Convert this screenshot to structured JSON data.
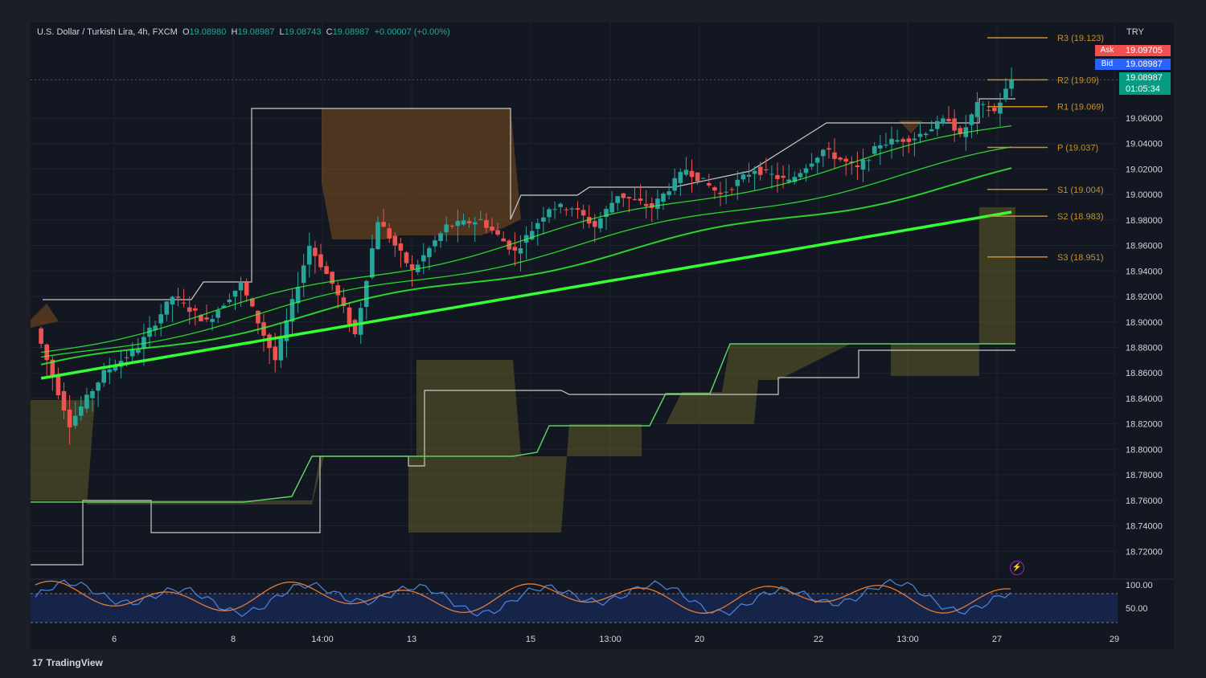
{
  "header": {
    "symbol": "U.S. Dollar / Turkish Lira, 4h, FXCM",
    "o_label": "O",
    "o_value": "19.08980",
    "h_label": "H",
    "h_value": "19.08987",
    "l_label": "L",
    "l_value": "19.08743",
    "c_label": "C",
    "c_value": "19.08987",
    "change": "+0.00007 (+0.00%)"
  },
  "currency": "TRY",
  "quote": {
    "ask_label": "Ask",
    "ask_value": "19.09705",
    "bid_label": "Bid",
    "bid_value": "19.08987",
    "last_value": "19.08987",
    "countdown": "01:05:34"
  },
  "pivot_labels": [
    "R3 (19.123)",
    "R2 (19.09)",
    "R1 (19.069)",
    "P (19.037)",
    "S1 (19.004)",
    "S2 (18.983)",
    "S3 (18.951)"
  ],
  "brand": {
    "logo": "17",
    "name": "TradingView"
  },
  "colors": {
    "bg": "#131722",
    "up": "#26a69a",
    "down": "#ef5350",
    "ma": "#33ff33",
    "pivot": "#c8902a",
    "ask": "#f05050",
    "bid": "#2962ff",
    "last": "#089981",
    "rsi": "#4a7fd6",
    "rsi_signal": "#e07b39"
  },
  "chart_data": {
    "type": "candlestick",
    "title": "U.S. Dollar / Turkish Lira, 4h, FXCM",
    "ylim": [
      18.7,
      19.135
    ],
    "y_ticks": [
      "19.06000",
      "19.04000",
      "19.02000",
      "19.00000",
      "18.98000",
      "18.96000",
      "18.94000",
      "18.92000",
      "18.90000",
      "18.88000",
      "18.86000",
      "18.84000",
      "18.82000",
      "18.80000",
      "18.78000",
      "18.76000",
      "18.74000",
      "18.72000"
    ],
    "x_ticks": [
      "6",
      "8",
      "14:00",
      "13",
      "15",
      "13:00",
      "20",
      "22",
      "13:00",
      "27",
      "29"
    ],
    "pivots": [
      {
        "name": "R3",
        "value": 19.123
      },
      {
        "name": "R2",
        "value": 19.09
      },
      {
        "name": "R1",
        "value": 19.069
      },
      {
        "name": "P",
        "value": 19.037
      },
      {
        "name": "S1",
        "value": 19.004
      },
      {
        "name": "S2",
        "value": 18.983
      },
      {
        "name": "S3",
        "value": 18.951
      }
    ],
    "candle_anchors": [
      [
        0,
        18.895
      ],
      [
        6,
        18.82
      ],
      [
        12,
        18.86
      ],
      [
        18,
        18.88
      ],
      [
        24,
        18.92
      ],
      [
        30,
        18.9
      ],
      [
        36,
        18.93
      ],
      [
        42,
        18.87
      ],
      [
        48,
        18.96
      ],
      [
        52,
        18.93
      ],
      [
        56,
        18.89
      ],
      [
        60,
        18.98
      ],
      [
        66,
        18.94
      ],
      [
        72,
        18.975
      ],
      [
        78,
        18.98
      ],
      [
        84,
        18.955
      ],
      [
        90,
        18.99
      ],
      [
        94,
        18.99
      ],
      [
        98,
        18.975
      ],
      [
        102,
        19.0
      ],
      [
        108,
        18.99
      ],
      [
        114,
        19.02
      ],
      [
        120,
        19.0
      ],
      [
        126,
        19.02
      ],
      [
        132,
        19.01
      ],
      [
        138,
        19.035
      ],
      [
        144,
        19.02
      ],
      [
        148,
        19.04
      ],
      [
        154,
        19.045
      ],
      [
        160,
        19.06
      ],
      [
        162,
        19.045
      ],
      [
        165,
        19.07
      ],
      [
        168,
        19.065
      ],
      [
        171,
        19.09
      ]
    ],
    "ma_series": [
      {
        "start": 18.855,
        "end": 18.987
      },
      {
        "start": 18.862,
        "end": 19.018
      },
      {
        "start": 18.868,
        "end": 19.035
      },
      {
        "start": 18.875,
        "end": 19.055
      }
    ],
    "rsi": {
      "ylim": [
        0,
        100
      ],
      "ticks": [
        "100.00",
        "50.00"
      ]
    }
  }
}
